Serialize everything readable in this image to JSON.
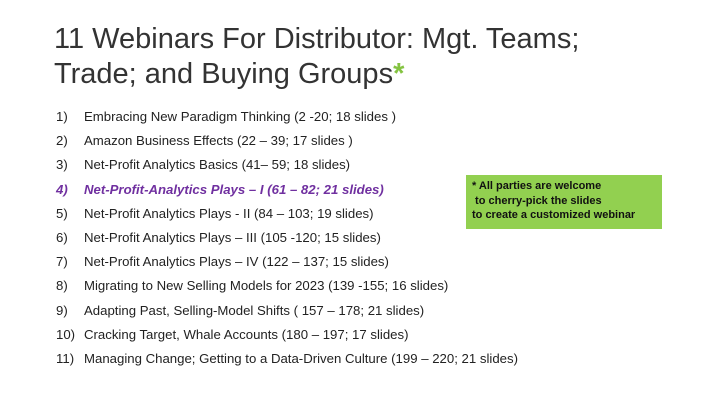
{
  "slide": {
    "title_line1": "11 Webinars For Distributor: Mgt. Teams;",
    "title_line2": "Trade; and Buying Groups",
    "title_mark": "*",
    "items": [
      {
        "num": "1)",
        "text": "Embracing New Paradigm Thinking (2 -20; 18 slides )"
      },
      {
        "num": "2)",
        "text": "Amazon Business Effects (22 – 39; 17 slides )"
      },
      {
        "num": "3)",
        "text": "Net-Profit Analytics Basics (41– 59; 18 slides)"
      },
      {
        "num": "4)",
        "text": "Net-Profit-Analytics Plays – I  (61 – 82; 21 slides)"
      },
      {
        "num": "5)",
        "text": "Net-Profit Analytics Plays - II (84 – 103; 19 slides)"
      },
      {
        "num": "6)",
        "text": "Net-Profit Analytics Plays – III  (105 -120; 15 slides)"
      },
      {
        "num": "7)",
        "text": "Net-Profit Analytics Plays – IV  (122 – 137; 15 slides)"
      },
      {
        "num": "8)",
        "text": "Migrating to New Selling Models for 2023 (139 -155; 16 slides)"
      },
      {
        "num": "9)",
        "text": "Adapting Past, Selling-Model Shifts ( 157 – 178; 21 slides)"
      },
      {
        "num": "10)",
        "text": "Cracking Target, Whale Accounts (180 – 197; 17 slides)"
      },
      {
        "num": "11)",
        "text": "Managing Change; Getting to a Data-Driven Culture (199 – 220; 21 slides)"
      }
    ],
    "callout": {
      "line1": "* All parties are welcome",
      "line2": " to cherry-pick the slides",
      "line3": "to create a customized webinar"
    }
  },
  "colors": {
    "accent_green": "#92d050",
    "star_green": "#84c341",
    "highlight_purple": "#7030a0"
  }
}
